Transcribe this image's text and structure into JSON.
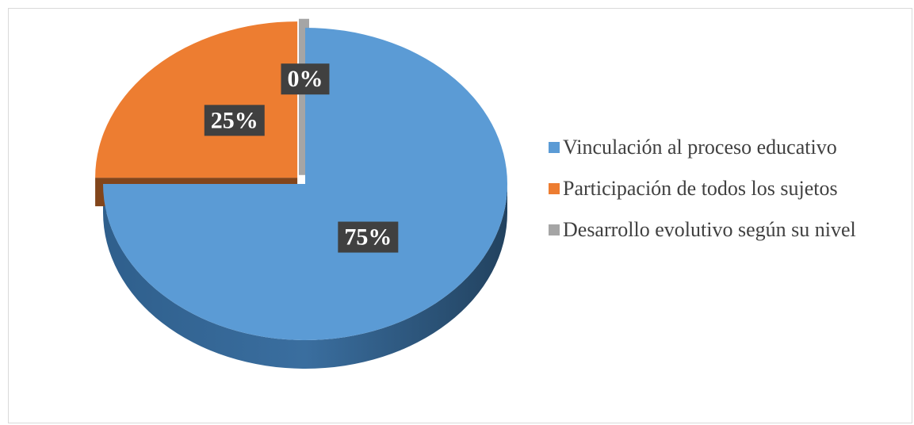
{
  "chart_data": {
    "type": "pie",
    "categories": [
      "Vinculación al proceso educativo",
      "Participación de todos los sujetos",
      "Desarrollo evolutivo según su nivel"
    ],
    "values": [
      75,
      25,
      0
    ],
    "value_labels": [
      "75%",
      "25%",
      "0%"
    ],
    "colors": [
      "#5b9bd5",
      "#ed7d31",
      "#a5a5a5"
    ],
    "legend": "right"
  }
}
